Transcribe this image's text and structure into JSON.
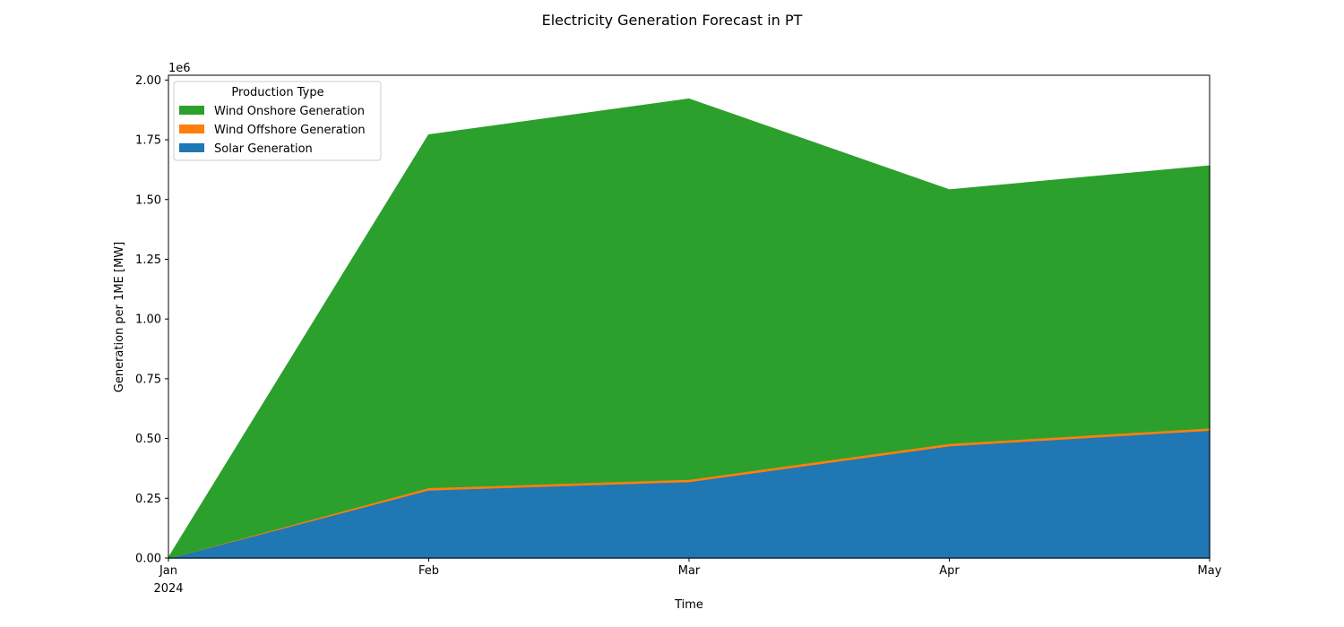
{
  "chart_data": {
    "type": "area",
    "stacked": true,
    "title": "Electricity Generation Forecast in PT",
    "xlabel": "Time",
    "ylabel": "Generation per 1ME [MW]",
    "y_offset_label": "1e6",
    "x": [
      "2024-01",
      "2024-02",
      "2024-03",
      "2024-04",
      "2024-05"
    ],
    "x_tick_labels": [
      "Jan",
      "Feb",
      "Mar",
      "Apr",
      "May"
    ],
    "x_year_label": "2024",
    "ylim": [
      0,
      2020000
    ],
    "y_ticks": [
      0,
      250000,
      500000,
      750000,
      1000000,
      1250000,
      1500000,
      1750000,
      2000000
    ],
    "y_tick_labels": [
      "0.00",
      "0.25",
      "0.50",
      "0.75",
      "1.00",
      "1.25",
      "1.50",
      "1.75",
      "2.00"
    ],
    "grid": false,
    "legend": {
      "title": "Production Type",
      "placement": "upper left"
    },
    "series": [
      {
        "name": "Solar Generation",
        "color": "#1f77b4",
        "values": [
          0,
          285000,
          320000,
          470000,
          535000
        ]
      },
      {
        "name": "Wind Offshore Generation",
        "color": "#ff7f0e",
        "values": [
          0,
          10000,
          10000,
          10000,
          10000
        ]
      },
      {
        "name": "Wind Onshore Generation",
        "color": "#2ca02c",
        "values": [
          0,
          1475000,
          1590000,
          1060000,
          1095000
        ]
      }
    ]
  }
}
